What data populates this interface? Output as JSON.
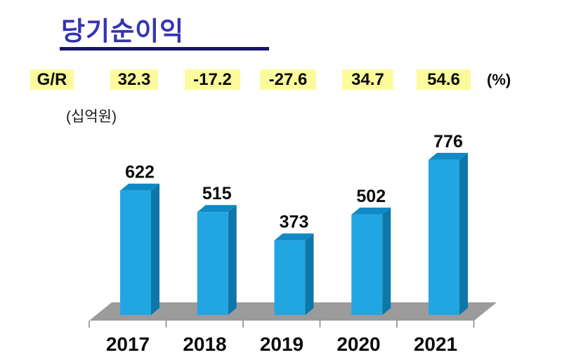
{
  "title": {
    "text": "당기순이익",
    "color": "#3434B2",
    "underline_color": "#17176B"
  },
  "gr_row": {
    "label": "G/R",
    "values": [
      "32.3",
      "-17.2",
      "-27.6",
      "34.7",
      "54.6"
    ],
    "unit": "(%)",
    "highlight_color": "#FBFB9D"
  },
  "axis_unit_label": "(십억원)",
  "chart_data": {
    "type": "bar",
    "style": "3d-column",
    "title": "당기순이익",
    "unit": "십억원",
    "categories": [
      "2017",
      "2018",
      "2019",
      "2020",
      "2021"
    ],
    "values": [
      622,
      515,
      373,
      502,
      776
    ],
    "growth_rate_pct": [
      32.3,
      -17.2,
      -27.6,
      34.7,
      54.6
    ],
    "value_labels_shown": true,
    "legend": "none",
    "gridlines": "off",
    "colors": {
      "bar_front": "#22A6E2",
      "bar_top": "#1189C5",
      "bar_side": "#0E77AA",
      "floor": "#9B9B9B",
      "tick": "#8C8C8C",
      "label": "#0b0b0b"
    }
  }
}
